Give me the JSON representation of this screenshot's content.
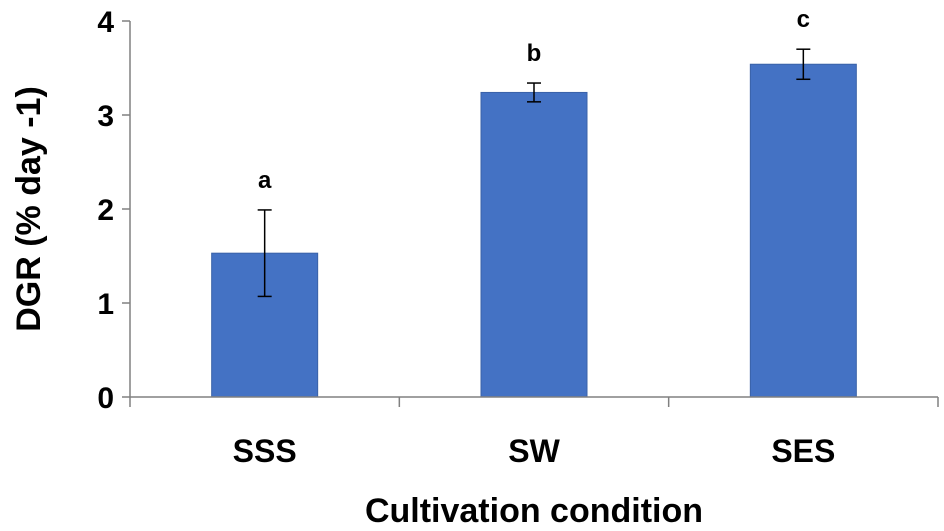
{
  "chart_data": {
    "type": "bar",
    "categories": [
      "SSS",
      "SW",
      "SES"
    ],
    "values": [
      1.53,
      3.24,
      3.54
    ],
    "error": [
      0.46,
      0.1,
      0.16
    ],
    "significance": [
      "a",
      "b",
      "c"
    ],
    "xlabel": "Cultivation condition",
    "ylabel": "DGR (% day -1)",
    "ylim": [
      0,
      4
    ],
    "yticks": [
      "0",
      "1",
      "2",
      "3",
      "4"
    ],
    "grid": false,
    "bar_color": "#4472C4",
    "bar_edge_color": "#3A62A8"
  }
}
